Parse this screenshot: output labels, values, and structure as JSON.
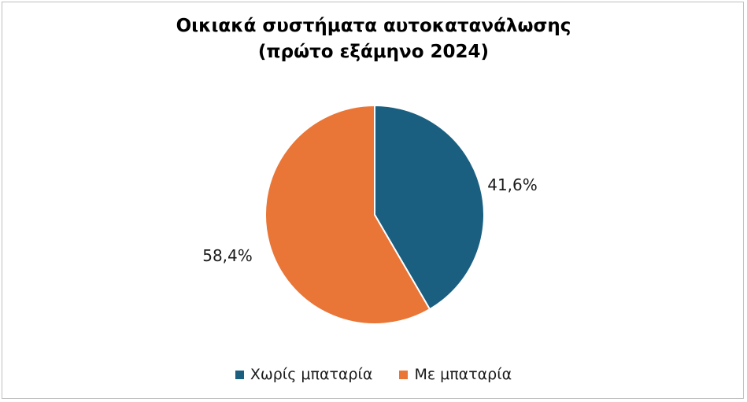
{
  "chart_data": {
    "type": "pie",
    "title": "Οικιακά συστήματα αυτοκατανάλωσης",
    "subtitle": "(πρώτο εξάμηνο 2024)",
    "categories": [
      "Χωρίς μπαταρία",
      "Με μπαταρία"
    ],
    "values": [
      41.6,
      58.4
    ],
    "data_labels": [
      "41,6%",
      "58,4%"
    ],
    "colors": [
      "#1a5f80",
      "#e97536"
    ],
    "legend_position": "bottom",
    "start_angle": "12 o'clock",
    "direction": "clockwise"
  }
}
